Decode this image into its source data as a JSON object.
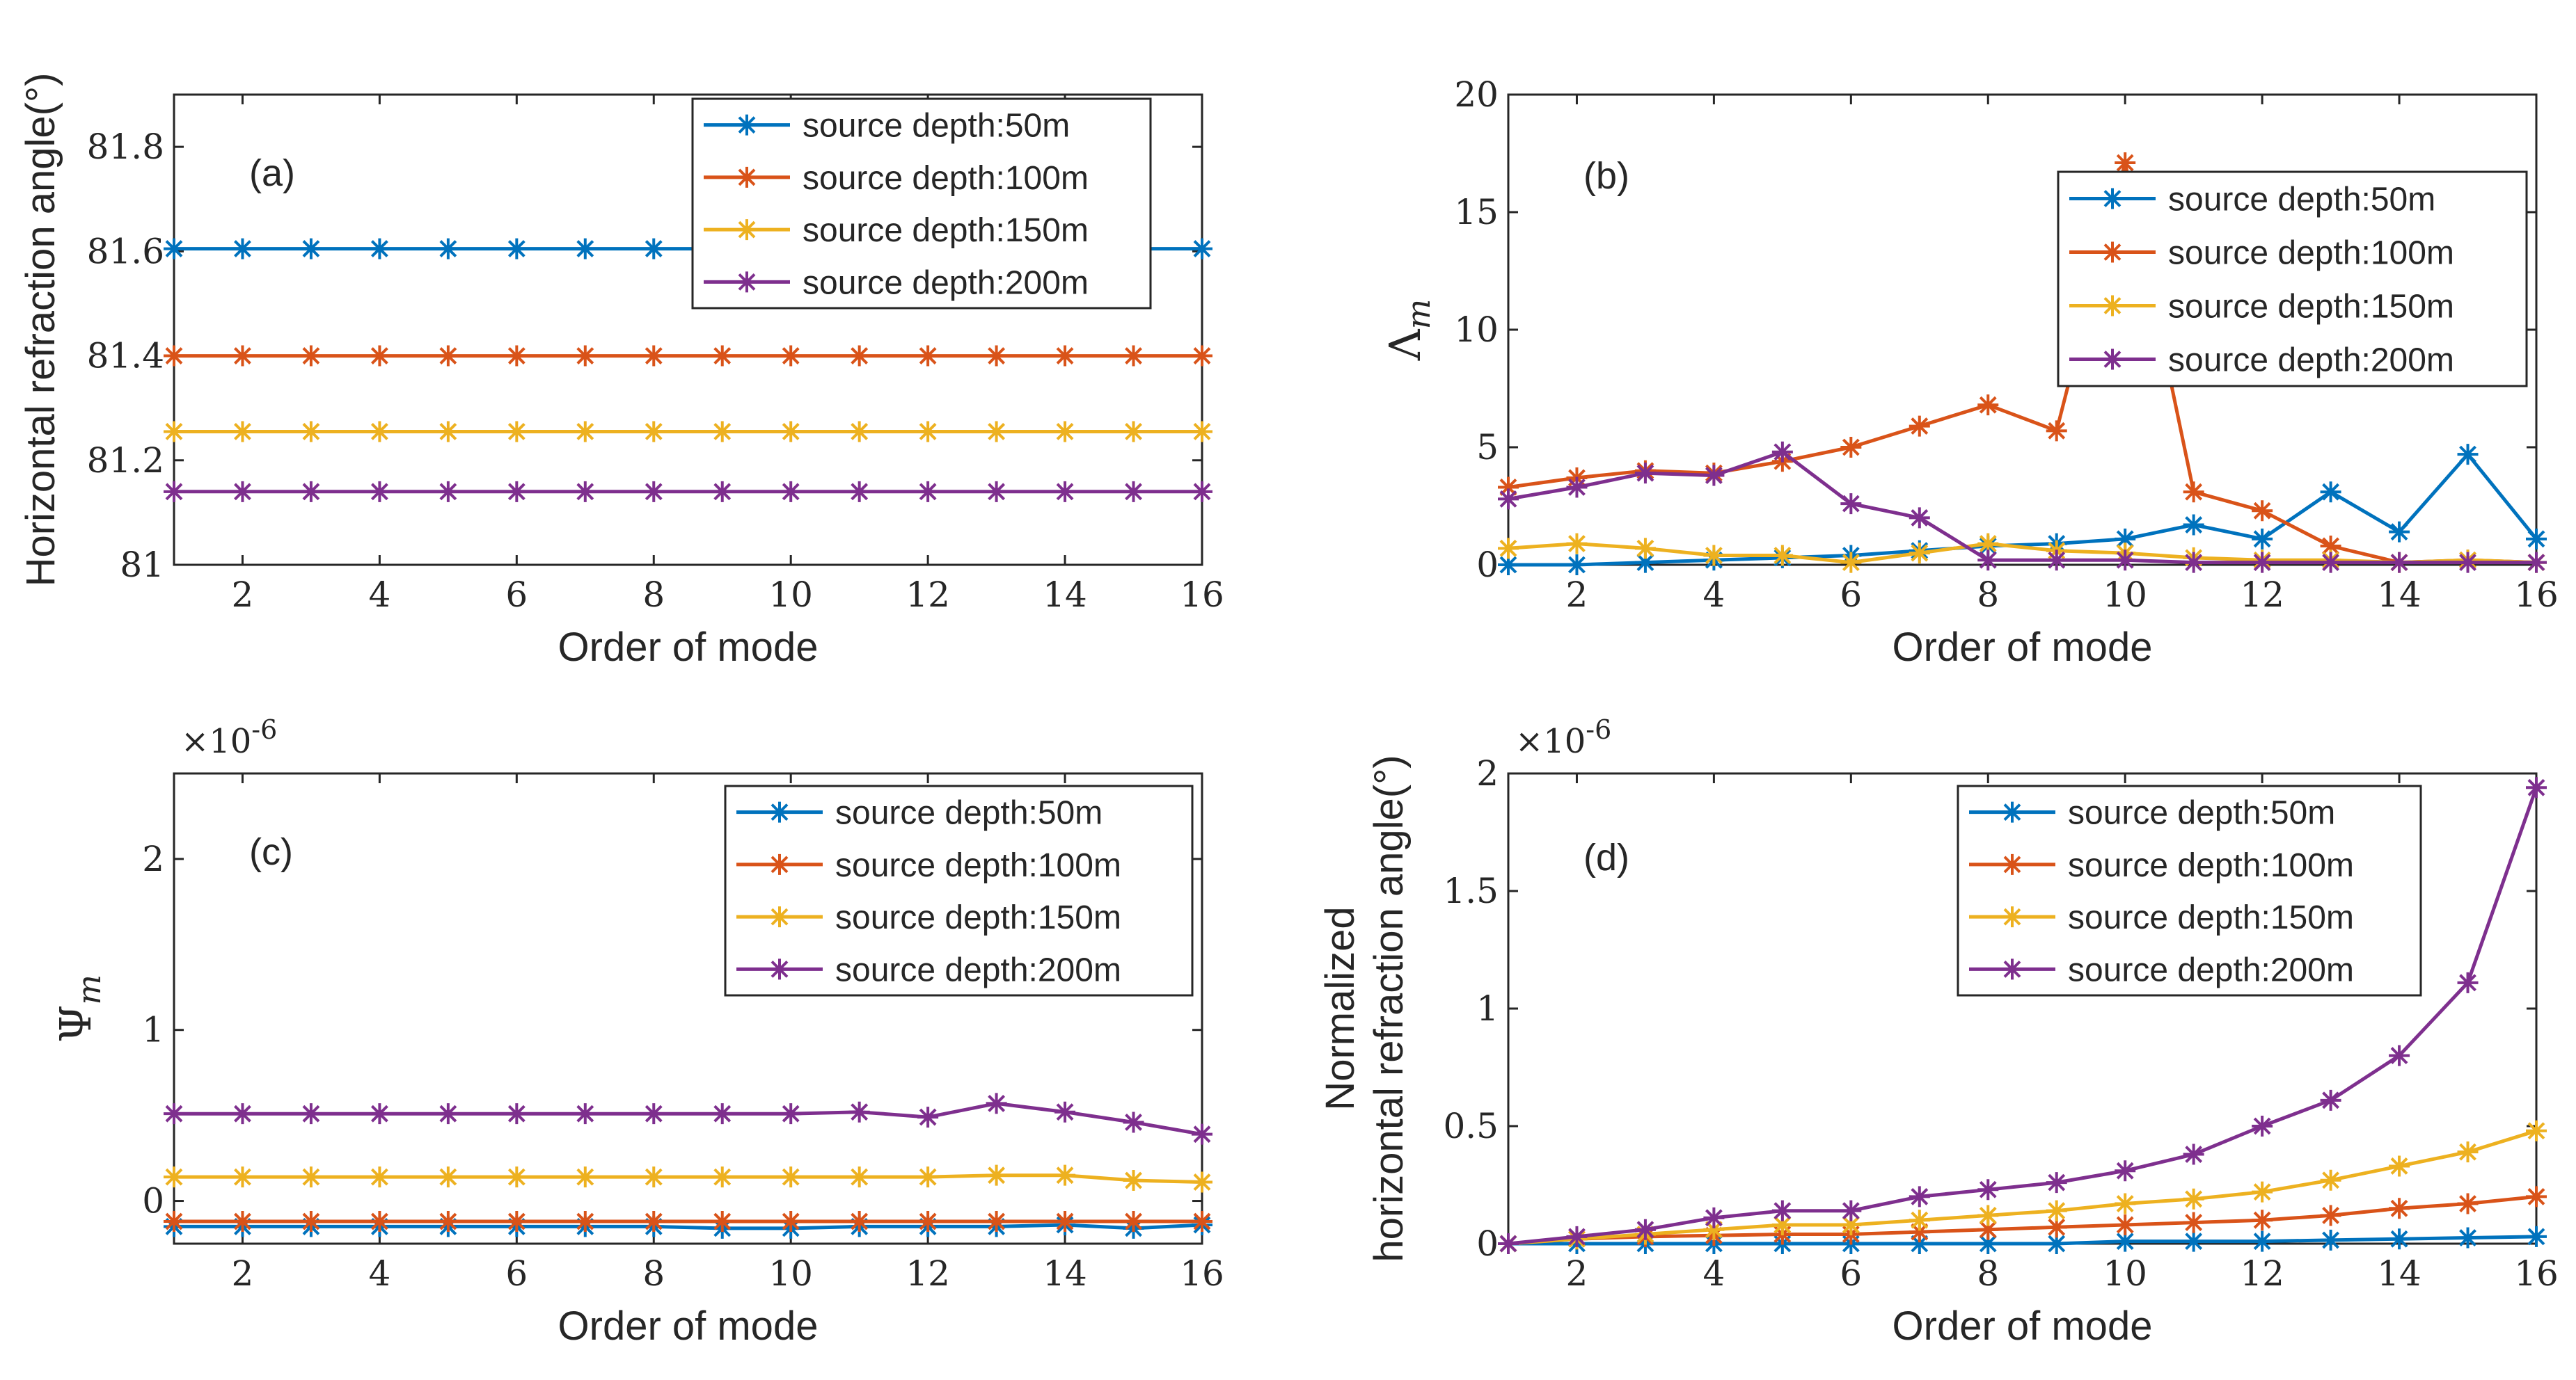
{
  "chart_data": [
    {
      "type": "line",
      "panel_label": "(a)",
      "xlabel": "Order of mode",
      "ylabel": "Horizontal refraction angle(°)",
      "ylabel_lines": [
        "Horizontal refraction angle(°)"
      ],
      "exponent": "",
      "xlim": [
        1,
        16
      ],
      "ylim": [
        81,
        81.9
      ],
      "xticks": [
        2,
        4,
        6,
        8,
        10,
        12,
        14,
        16
      ],
      "yticks": [
        81,
        81.2,
        81.4,
        81.6,
        81.8
      ],
      "ytick_labels": [
        "81",
        "81.2",
        "81.4",
        "81.6",
        "81.8"
      ],
      "legend_position": "top-right",
      "x": [
        1,
        2,
        3,
        4,
        5,
        6,
        7,
        8,
        9,
        10,
        11,
        12,
        13,
        14,
        15,
        16
      ],
      "series": [
        {
          "name": "source depth:50m",
          "color": "#0072BD",
          "values": [
            81.605,
            81.605,
            81.605,
            81.605,
            81.605,
            81.605,
            81.605,
            81.605,
            81.605,
            81.605,
            81.605,
            81.605,
            81.605,
            81.605,
            81.605,
            81.605
          ]
        },
        {
          "name": "source depth:100m",
          "color": "#D95319",
          "values": [
            81.4,
            81.4,
            81.4,
            81.4,
            81.4,
            81.4,
            81.4,
            81.4,
            81.4,
            81.4,
            81.4,
            81.4,
            81.4,
            81.4,
            81.4,
            81.4
          ]
        },
        {
          "name": "source depth:150m",
          "color": "#EDB120",
          "values": [
            81.255,
            81.255,
            81.255,
            81.255,
            81.255,
            81.255,
            81.255,
            81.255,
            81.255,
            81.255,
            81.255,
            81.255,
            81.255,
            81.255,
            81.255,
            81.255
          ]
        },
        {
          "name": "source depth:200m",
          "color": "#7E2F8E",
          "values": [
            81.14,
            81.14,
            81.14,
            81.14,
            81.14,
            81.14,
            81.14,
            81.14,
            81.14,
            81.14,
            81.14,
            81.14,
            81.14,
            81.14,
            81.14,
            81.14
          ]
        }
      ]
    },
    {
      "type": "line",
      "panel_label": "(b)",
      "xlabel": "Order of mode",
      "ylabel": "Λm",
      "ylabel_lines": [],
      "ylabel_math": {
        "symbol": "Λ",
        "sub": "m"
      },
      "exponent": "",
      "xlim": [
        1,
        16
      ],
      "ylim": [
        0,
        20
      ],
      "xticks": [
        2,
        4,
        6,
        8,
        10,
        12,
        14,
        16
      ],
      "yticks": [
        0,
        5,
        10,
        15,
        20
      ],
      "ytick_labels": [
        "0",
        "5",
        "10",
        "15",
        "20"
      ],
      "legend_position": "top-right",
      "x": [
        1,
        2,
        3,
        4,
        5,
        6,
        7,
        8,
        9,
        10,
        11,
        12,
        13,
        14,
        15,
        16
      ],
      "series": [
        {
          "name": "source depth:50m",
          "color": "#0072BD",
          "values": [
            0.0,
            0.0,
            0.1,
            0.2,
            0.3,
            0.4,
            0.6,
            0.8,
            0.9,
            1.1,
            1.7,
            1.1,
            3.1,
            1.4,
            4.7,
            1.1
          ]
        },
        {
          "name": "source depth:100m",
          "color": "#D95319",
          "values": [
            3.3,
            3.7,
            4.0,
            3.9,
            4.4,
            5.0,
            5.9,
            6.8,
            5.7,
            17.1,
            3.1,
            2.3,
            0.8,
            0.1,
            0.2,
            0.1
          ]
        },
        {
          "name": "source depth:150m",
          "color": "#EDB120",
          "values": [
            0.7,
            0.9,
            0.7,
            0.4,
            0.4,
            0.1,
            0.5,
            0.9,
            0.6,
            0.5,
            0.3,
            0.2,
            0.2,
            0.1,
            0.2,
            0.1
          ]
        },
        {
          "name": "source depth:200m",
          "color": "#7E2F8E",
          "values": [
            2.8,
            3.3,
            3.9,
            3.8,
            4.8,
            2.6,
            2.0,
            0.2,
            0.2,
            0.2,
            0.1,
            0.1,
            0.1,
            0.1,
            0.1,
            0.1
          ]
        }
      ]
    },
    {
      "type": "line",
      "panel_label": "(c)",
      "xlabel": "Order of mode",
      "ylabel": "Ψm",
      "ylabel_lines": [],
      "ylabel_math": {
        "symbol": "Ψ",
        "sub": "m"
      },
      "exponent": "×10",
      "exponent_power": "-6",
      "xlim": [
        1,
        16
      ],
      "ylim": [
        -0.25,
        2.5
      ],
      "xticks": [
        2,
        4,
        6,
        8,
        10,
        12,
        14,
        16
      ],
      "yticks": [
        0,
        1,
        2
      ],
      "ytick_labels": [
        "0",
        "1",
        "2"
      ],
      "legend_position": "top-right",
      "x": [
        1,
        2,
        3,
        4,
        5,
        6,
        7,
        8,
        9,
        10,
        11,
        12,
        13,
        14,
        15,
        16
      ],
      "series": [
        {
          "name": "source depth:50m",
          "color": "#0072BD",
          "values": [
            -0.15,
            -0.15,
            -0.15,
            -0.15,
            -0.15,
            -0.15,
            -0.15,
            -0.15,
            -0.16,
            -0.16,
            -0.15,
            -0.15,
            -0.15,
            -0.14,
            -0.16,
            -0.14
          ]
        },
        {
          "name": "source depth:100m",
          "color": "#D95319",
          "values": [
            -0.12,
            -0.12,
            -0.12,
            -0.12,
            -0.12,
            -0.12,
            -0.12,
            -0.12,
            -0.12,
            -0.12,
            -0.12,
            -0.12,
            -0.12,
            -0.12,
            -0.12,
            -0.12
          ]
        },
        {
          "name": "source depth:150m",
          "color": "#EDB120",
          "values": [
            0.14,
            0.14,
            0.14,
            0.14,
            0.14,
            0.14,
            0.14,
            0.14,
            0.14,
            0.14,
            0.14,
            0.14,
            0.15,
            0.15,
            0.12,
            0.11
          ]
        },
        {
          "name": "source depth:200m",
          "color": "#7E2F8E",
          "values": [
            0.51,
            0.51,
            0.51,
            0.51,
            0.51,
            0.51,
            0.51,
            0.51,
            0.51,
            0.51,
            0.52,
            0.49,
            0.57,
            0.52,
            0.46,
            0.39
          ]
        }
      ]
    },
    {
      "type": "line",
      "panel_label": "(d)",
      "xlabel": "Order of mode",
      "ylabel": "Normalized horizontal refraction angle(°)",
      "ylabel_lines": [
        "Normalized",
        "horizontal refraction angle(°)"
      ],
      "exponent": "×10",
      "exponent_power": "-6",
      "xlim": [
        1,
        16
      ],
      "ylim": [
        0,
        2
      ],
      "xticks": [
        2,
        4,
        6,
        8,
        10,
        12,
        14,
        16
      ],
      "yticks": [
        0,
        0.5,
        1,
        1.5,
        2
      ],
      "ytick_labels": [
        "0",
        "0.5",
        "1",
        "1.5",
        "2"
      ],
      "legend_position": "top-right",
      "x": [
        1,
        2,
        3,
        4,
        5,
        6,
        7,
        8,
        9,
        10,
        11,
        12,
        13,
        14,
        15,
        16
      ],
      "series": [
        {
          "name": "source depth:50m",
          "color": "#0072BD",
          "values": [
            0.0,
            0.0,
            0.0,
            0.0,
            0.0,
            0.0,
            0.0,
            0.0,
            0.0,
            0.01,
            0.01,
            0.01,
            0.015,
            0.02,
            0.025,
            0.03
          ]
        },
        {
          "name": "source depth:100m",
          "color": "#D95319",
          "values": [
            0.0,
            0.02,
            0.03,
            0.035,
            0.04,
            0.04,
            0.05,
            0.06,
            0.07,
            0.08,
            0.09,
            0.1,
            0.12,
            0.15,
            0.17,
            0.2
          ]
        },
        {
          "name": "source depth:150m",
          "color": "#EDB120",
          "values": [
            0.0,
            0.02,
            0.04,
            0.06,
            0.08,
            0.08,
            0.1,
            0.12,
            0.14,
            0.17,
            0.19,
            0.22,
            0.27,
            0.33,
            0.39,
            0.48
          ]
        },
        {
          "name": "source depth:200m",
          "color": "#7E2F8E",
          "values": [
            0.0,
            0.03,
            0.06,
            0.11,
            0.14,
            0.14,
            0.2,
            0.23,
            0.26,
            0.31,
            0.38,
            0.5,
            0.61,
            0.8,
            1.11,
            1.94
          ]
        }
      ]
    }
  ]
}
